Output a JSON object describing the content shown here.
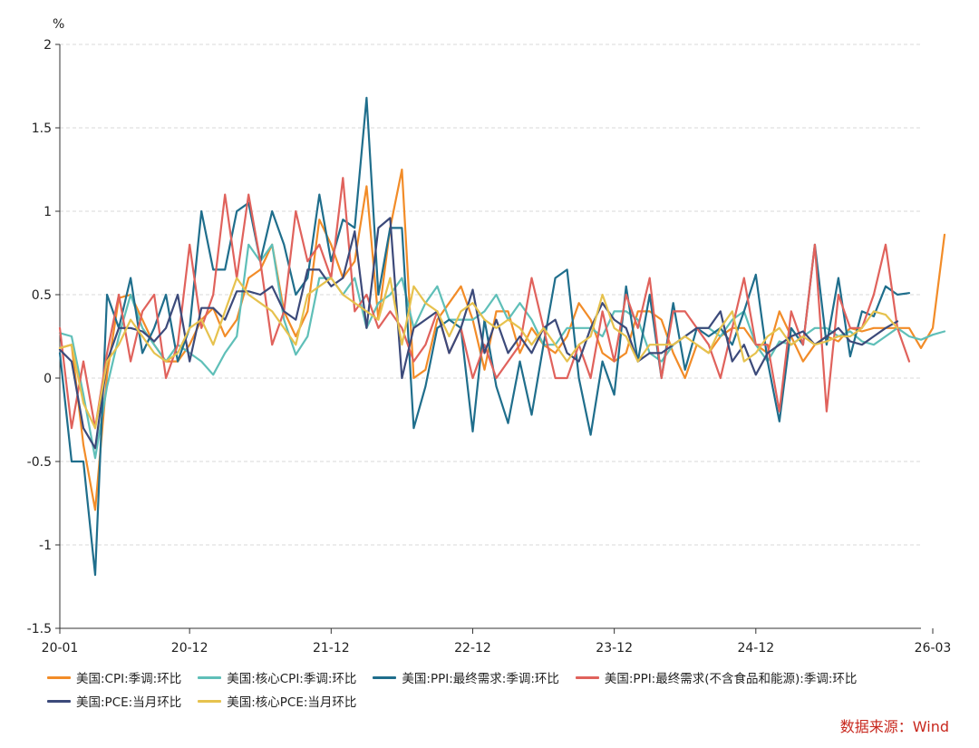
{
  "chart_data": {
    "type": "line",
    "unit": "%",
    "ylim": [
      -1.5,
      2
    ],
    "yticks": [
      "-1.5",
      "-1",
      "-0.5",
      "0",
      "0.5",
      "1",
      "1.5",
      "2"
    ],
    "x_range": [
      "20-01",
      "26-03"
    ],
    "xticks": [
      "20-01",
      "20-12",
      "21-12",
      "22-12",
      "23-12",
      "24-12",
      "26-03"
    ],
    "grid": "horizontal-dashed",
    "legend_position": "bottom",
    "series": [
      {
        "name": "美国:CPI:季调:环比",
        "color": "#f28c28",
        "values": [
          0.18,
          0.2,
          -0.4,
          -0.79,
          0.02,
          0.48,
          0.5,
          0.35,
          0.2,
          0.1,
          0.1,
          0.2,
          0.35,
          0.42,
          0.25,
          0.35,
          0.6,
          0.65,
          0.8,
          0.4,
          0.25,
          0.4,
          0.95,
          0.8,
          0.6,
          0.7,
          1.15,
          0.35,
          0.9,
          1.25,
          0.0,
          0.05,
          0.35,
          0.45,
          0.55,
          0.35,
          0.05,
          0.4,
          0.4,
          0.15,
          0.3,
          0.2,
          0.15,
          0.25,
          0.45,
          0.35,
          0.15,
          0.1,
          0.15,
          0.4,
          0.4,
          0.35,
          0.15,
          0.0,
          0.2,
          0.15,
          0.25,
          0.3,
          0.3,
          0.2,
          0.15,
          0.4,
          0.25,
          0.1,
          0.2,
          0.25,
          0.22,
          0.3,
          0.28,
          0.3,
          0.3,
          0.3,
          0.3,
          0.18,
          0.3,
          0.86
        ]
      },
      {
        "name": "美国:核心CPI:季调:环比",
        "color": "#5fbfb8",
        "values": [
          0.27,
          0.25,
          -0.1,
          -0.48,
          -0.05,
          0.25,
          0.5,
          0.3,
          0.2,
          0.1,
          0.2,
          0.15,
          0.1,
          0.02,
          0.15,
          0.25,
          0.8,
          0.7,
          0.8,
          0.35,
          0.14,
          0.25,
          0.6,
          0.6,
          0.5,
          0.6,
          0.3,
          0.45,
          0.5,
          0.6,
          0.3,
          0.45,
          0.55,
          0.35,
          0.35,
          0.35,
          0.4,
          0.5,
          0.35,
          0.45,
          0.35,
          0.2,
          0.2,
          0.3,
          0.3,
          0.3,
          0.25,
          0.4,
          0.4,
          0.35,
          0.15,
          0.1,
          0.2,
          0.25,
          0.3,
          0.3,
          0.25,
          0.35,
          0.4,
          0.2,
          0.1,
          0.22,
          0.2,
          0.25,
          0.3,
          0.3,
          0.25,
          0.28,
          0.22,
          0.2,
          0.25,
          0.3,
          0.25,
          0.23,
          0.26,
          0.28
        ]
      },
      {
        "name": "美国:PPI:最终需求:季调:环比",
        "color": "#1f6e8c",
        "values": [
          0.15,
          -0.5,
          -0.5,
          -1.18,
          0.5,
          0.3,
          0.6,
          0.15,
          0.3,
          0.5,
          0.1,
          0.3,
          1.0,
          0.65,
          0.65,
          1.0,
          1.05,
          0.7,
          1.0,
          0.8,
          0.5,
          0.6,
          1.1,
          0.7,
          0.95,
          0.9,
          1.68,
          0.5,
          0.9,
          0.9,
          -0.3,
          -0.05,
          0.3,
          0.35,
          0.3,
          -0.32,
          0.35,
          -0.05,
          -0.27,
          0.1,
          -0.22,
          0.2,
          0.6,
          0.65,
          0.0,
          -0.34,
          0.1,
          -0.1,
          0.55,
          0.1,
          0.5,
          0.0,
          0.45,
          0.05,
          0.3,
          0.25,
          0.3,
          0.2,
          0.4,
          0.62,
          0.1,
          -0.26,
          0.3,
          0.2,
          0.8,
          0.2,
          0.6,
          0.13,
          0.4,
          0.37,
          0.55,
          0.5,
          0.51
        ]
      },
      {
        "name": "美国:PPI:最终需求(不含食品和能源):季调:环比",
        "color": "#e0625c",
        "values": [
          0.3,
          -0.3,
          0.1,
          -0.3,
          0.15,
          0.5,
          0.1,
          0.4,
          0.5,
          0.0,
          0.2,
          0.8,
          0.3,
          0.5,
          1.1,
          0.6,
          1.1,
          0.7,
          0.2,
          0.4,
          1.0,
          0.7,
          0.8,
          0.6,
          1.2,
          0.4,
          0.5,
          0.3,
          0.4,
          0.3,
          0.1,
          0.2,
          0.4,
          0.15,
          0.3,
          0.0,
          0.2,
          0.0,
          0.1,
          0.2,
          0.6,
          0.3,
          0.0,
          0.0,
          0.2,
          0.0,
          0.4,
          0.1,
          0.5,
          0.3,
          0.6,
          0.0,
          0.4,
          0.4,
          0.3,
          0.2,
          0.0,
          0.3,
          0.6,
          0.2,
          0.2,
          -0.2,
          0.4,
          0.2,
          0.8,
          -0.2,
          0.5,
          0.3,
          0.3,
          0.5,
          0.8,
          0.3,
          0.1
        ]
      },
      {
        "name": "美国:PCE:当月环比",
        "color": "#3c4a7a",
        "values": [
          0.17,
          0.1,
          -0.3,
          -0.42,
          0.1,
          0.3,
          0.3,
          0.28,
          0.22,
          0.3,
          0.5,
          0.1,
          0.42,
          0.42,
          0.35,
          0.52,
          0.52,
          0.5,
          0.55,
          0.4,
          0.35,
          0.65,
          0.65,
          0.55,
          0.6,
          0.88,
          0.3,
          0.9,
          0.96,
          0.0,
          0.3,
          0.35,
          0.4,
          0.15,
          0.3,
          0.53,
          0.15,
          0.35,
          0.15,
          0.25,
          0.15,
          0.3,
          0.35,
          0.15,
          0.1,
          0.3,
          0.45,
          0.35,
          0.3,
          0.1,
          0.15,
          0.15,
          0.2,
          0.25,
          0.3,
          0.3,
          0.4,
          0.1,
          0.2,
          0.02,
          0.15,
          0.2,
          0.25,
          0.28,
          0.2,
          0.25,
          0.3,
          0.22,
          0.2,
          0.25,
          0.3,
          0.34
        ]
      },
      {
        "name": "美国:核心PCE:当月环比",
        "color": "#e6c24e",
        "values": [
          0.18,
          0.2,
          -0.15,
          -0.3,
          0.1,
          0.2,
          0.35,
          0.25,
          0.15,
          0.1,
          0.15,
          0.3,
          0.35,
          0.2,
          0.4,
          0.6,
          0.5,
          0.45,
          0.4,
          0.3,
          0.2,
          0.5,
          0.55,
          0.6,
          0.5,
          0.45,
          0.4,
          0.35,
          0.6,
          0.2,
          0.55,
          0.45,
          0.4,
          0.25,
          0.4,
          0.45,
          0.35,
          0.3,
          0.35,
          0.3,
          0.2,
          0.3,
          0.2,
          0.1,
          0.2,
          0.25,
          0.5,
          0.3,
          0.25,
          0.1,
          0.2,
          0.2,
          0.2,
          0.25,
          0.2,
          0.15,
          0.3,
          0.4,
          0.1,
          0.15,
          0.25,
          0.3,
          0.2,
          0.25,
          0.2,
          0.22,
          0.25,
          0.25,
          0.3,
          0.4,
          0.38,
          0.3
        ]
      }
    ]
  },
  "source": "数据来源：Wind"
}
